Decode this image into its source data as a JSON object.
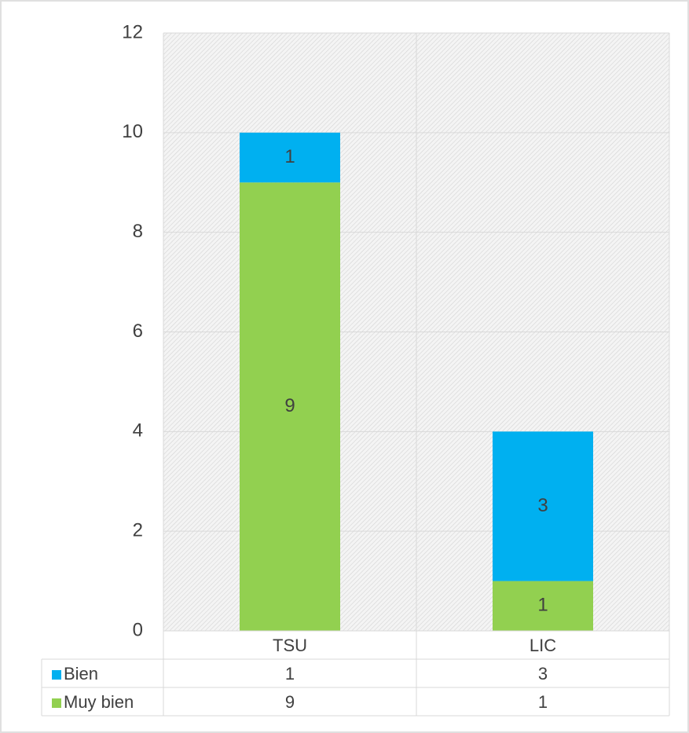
{
  "chart_data": {
    "type": "stacked_bar",
    "categories": [
      "TSU",
      "LIC"
    ],
    "series": [
      {
        "name": "Bien",
        "color": "#00b0f0",
        "values": [
          1,
          3
        ]
      },
      {
        "name": "Muy bien",
        "color": "#92d050",
        "values": [
          9,
          1
        ]
      }
    ],
    "ylim": [
      0,
      12
    ],
    "yticks": [
      0,
      2,
      4,
      6,
      8,
      10,
      12
    ],
    "grid": true,
    "data_table": true
  }
}
